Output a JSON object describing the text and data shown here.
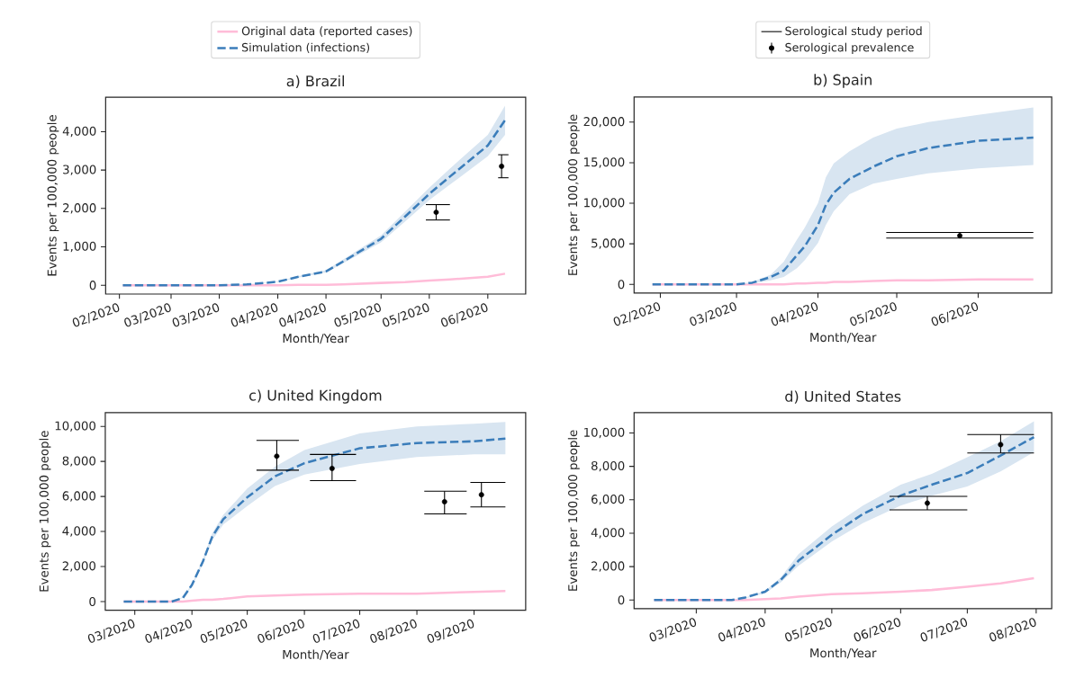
{
  "chart_data": [
    {
      "type": "line",
      "title": "a) Brazil",
      "xlabel": "Month/Year",
      "ylabel": "Events per 100,000 people",
      "legend": "top",
      "xlim": [
        "2020-02-11",
        "2020-06-12"
      ],
      "ylim": [
        -230,
        4900
      ],
      "xticks": [
        {
          "value": "2020-02-15",
          "label": "02/2020"
        },
        {
          "value": "2020-03-01",
          "label": "03/2020"
        },
        {
          "value": "2020-03-15",
          "label": "03/2020"
        },
        {
          "value": "2020-04-01",
          "label": "04/2020"
        },
        {
          "value": "2020-04-15",
          "label": "04/2020"
        },
        {
          "value": "2020-05-01",
          "label": "05/2020"
        },
        {
          "value": "2020-05-15",
          "label": "05/2020"
        },
        {
          "value": "2020-06-01",
          "label": "06/2020"
        }
      ],
      "yticks": [
        0,
        {
          "value": 1000,
          "label": "1,000"
        },
        {
          "value": 2000,
          "label": "2,000"
        },
        {
          "value": 3000,
          "label": "3,000"
        },
        {
          "value": 4000,
          "label": "4,000"
        }
      ],
      "series": [
        {
          "name": "Original data (reported cases)",
          "line_style": "solid",
          "color": "#ffbcd8",
          "x": [
            "2020-02-16",
            "2020-03-15",
            "2020-03-23",
            "2020-04-01",
            "2020-04-07",
            "2020-04-15",
            "2020-04-20",
            "2020-05-01",
            "2020-05-08",
            "2020-05-15",
            "2020-05-21",
            "2020-06-01",
            "2020-06-06"
          ],
          "values": [
            0,
            0,
            0,
            0,
            10,
            10,
            20,
            60,
            80,
            120,
            150,
            220,
            300
          ]
        },
        {
          "name": "Simulation (infections)",
          "line_style": "dashed",
          "color": "#3b7dba",
          "x": [
            "2020-02-16",
            "2020-03-15",
            "2020-03-23",
            "2020-04-01",
            "2020-04-07",
            "2020-04-15",
            "2020-04-20",
            "2020-05-01",
            "2020-05-08",
            "2020-05-15",
            "2020-05-21",
            "2020-06-01",
            "2020-06-06"
          ],
          "values": [
            0,
            0,
            20,
            90,
            220,
            360,
            620,
            1210,
            1790,
            2380,
            2830,
            3640,
            4300
          ],
          "lower": [
            0,
            0,
            15,
            80,
            200,
            330,
            570,
            1120,
            1660,
            2220,
            2620,
            3360,
            3920
          ],
          "upper": [
            0,
            0,
            25,
            100,
            240,
            390,
            670,
            1300,
            1920,
            2540,
            3040,
            3920,
            4680
          ]
        },
        {
          "line_style": "solid",
          "color": "#000000",
          "x": [
            "2020-05-14",
            "2020-05-21"
          ],
          "values": [
            1700,
            1700
          ]
        },
        {
          "line_style": "solid",
          "color": "#000000",
          "x": [
            "2020-05-14",
            "2020-05-21"
          ],
          "values": [
            2100,
            2100
          ]
        },
        {
          "line_style": "solid",
          "color": "#000000",
          "x": [
            "2020-06-04",
            "2020-06-07"
          ],
          "values": [
            2800,
            2800
          ]
        },
        {
          "line_style": "solid",
          "color": "#000000",
          "x": [
            "2020-06-04",
            "2020-06-07"
          ],
          "values": [
            3400,
            3400
          ]
        },
        {
          "type": "scatter",
          "marker": "circle",
          "color": "#000000",
          "x": [
            "2020-05-17",
            "2020-06-05"
          ],
          "values": [
            1900,
            3100
          ],
          "errors": [
            [
              1700,
              2100
            ],
            [
              2800,
              3400
            ]
          ]
        }
      ]
    },
    {
      "type": "line",
      "title": "b) Spain",
      "xlabel": "Month/Year",
      "ylabel": "Events per 100,000 people",
      "legend": "top",
      "xlim": [
        "2020-01-22",
        "2020-06-29"
      ],
      "ylim": [
        -1070,
        23100
      ],
      "xticks": [
        {
          "value": "2020-02-01",
          "label": "02/2020"
        },
        {
          "value": "2020-03-01",
          "label": "03/2020"
        },
        {
          "value": "2020-04-01",
          "label": "04/2020"
        },
        {
          "value": "2020-05-01",
          "label": "05/2020"
        },
        {
          "value": "2020-06-01",
          "label": "06/2020"
        }
      ],
      "yticks": [
        0,
        {
          "value": 5000,
          "label": "5,000"
        },
        {
          "value": 10000,
          "label": "10,000"
        },
        {
          "value": 15000,
          "label": "15,000"
        },
        {
          "value": 20000,
          "label": "20,000"
        }
      ],
      "series": [
        {
          "line_style": "solid",
          "color": "#ffbcd8",
          "x": [
            "2020-01-29",
            "2020-03-01",
            "2020-03-07",
            "2020-03-14",
            "2020-03-19",
            "2020-03-24",
            "2020-03-27",
            "2020-04-01",
            "2020-04-04",
            "2020-04-07",
            "2020-04-13",
            "2020-04-22",
            "2020-05-01",
            "2020-05-13",
            "2020-06-01",
            "2020-06-22"
          ],
          "values": [
            0,
            0,
            0,
            0,
            0,
            100,
            100,
            200,
            200,
            300,
            300,
            400,
            500,
            500,
            600,
            600
          ]
        },
        {
          "line_style": "dashed",
          "color": "#3b7dba",
          "x": [
            "2020-01-29",
            "2020-03-01",
            "2020-03-07",
            "2020-03-14",
            "2020-03-19",
            "2020-03-24",
            "2020-03-27",
            "2020-04-01",
            "2020-04-04",
            "2020-04-07",
            "2020-04-13",
            "2020-04-22",
            "2020-05-01",
            "2020-05-13",
            "2020-06-01",
            "2020-06-22"
          ],
          "values": [
            0,
            0,
            200,
            900,
            1700,
            3600,
            4700,
            7300,
            9800,
            11300,
            13000,
            14500,
            15800,
            16800,
            17700,
            18100
          ],
          "lower": [
            0,
            0,
            100,
            500,
            900,
            2000,
            3000,
            5100,
            7300,
            9000,
            11100,
            12400,
            13000,
            13700,
            14300,
            14700
          ],
          "upper": [
            0,
            0,
            300,
            1200,
            2800,
            5500,
            7000,
            10000,
            13200,
            14900,
            16400,
            18100,
            19200,
            20000,
            20900,
            21800
          ]
        },
        {
          "name": "Serological study period",
          "line_style": "solid",
          "color": "#000000",
          "x": [
            "2020-04-27",
            "2020-06-22"
          ],
          "values": [
            5700,
            5700
          ]
        },
        {
          "line_style": "solid",
          "color": "#000000",
          "x": [
            "2020-04-27",
            "2020-06-22"
          ],
          "values": [
            6400,
            6400
          ]
        },
        {
          "name": "Serological prevalence",
          "type": "scatter",
          "marker": "circle",
          "color": "#000000",
          "x": [
            "2020-05-25"
          ],
          "values": [
            6000
          ],
          "errors": [
            [
              5700,
              6400
            ]
          ]
        }
      ]
    },
    {
      "type": "line",
      "title": "c) United Kingdom",
      "xlabel": "Month/Year",
      "ylabel": "Events per 100,000 people",
      "xlim": [
        "2020-02-14",
        "2020-09-29"
      ],
      "ylim": [
        -490,
        10790
      ],
      "xticks": [
        {
          "value": "2020-03-01",
          "label": "03/2020"
        },
        {
          "value": "2020-04-01",
          "label": "04/2020"
        },
        {
          "value": "2020-05-01",
          "label": "05/2020"
        },
        {
          "value": "2020-06-01",
          "label": "06/2020"
        },
        {
          "value": "2020-07-01",
          "label": "07/2020"
        },
        {
          "value": "2020-08-01",
          "label": "08/2020"
        },
        {
          "value": "2020-09-01",
          "label": "09/2020"
        }
      ],
      "yticks": [
        0,
        {
          "value": 2000,
          "label": "2,000"
        },
        {
          "value": 4000,
          "label": "4,000"
        },
        {
          "value": 6000,
          "label": "6,000"
        },
        {
          "value": 8000,
          "label": "8,000"
        },
        {
          "value": 10000,
          "label": "10,000"
        }
      ],
      "series": [
        {
          "line_style": "solid",
          "color": "#ffbcd8",
          "x": [
            "2020-02-24",
            "2020-03-21",
            "2020-03-27",
            "2020-04-01",
            "2020-04-07",
            "2020-04-12",
            "2020-04-18",
            "2020-05-01",
            "2020-05-16",
            "2020-06-01",
            "2020-07-01",
            "2020-08-01",
            "2020-09-01",
            "2020-09-18"
          ],
          "values": [
            0,
            0,
            0,
            50,
            100,
            100,
            150,
            300,
            350,
            400,
            450,
            450,
            550,
            600
          ]
        },
        {
          "line_style": "dashed",
          "color": "#3b7dba",
          "x": [
            "2020-02-24",
            "2020-03-21",
            "2020-03-27",
            "2020-04-01",
            "2020-04-07",
            "2020-04-12",
            "2020-04-18",
            "2020-05-01",
            "2020-05-16",
            "2020-06-01",
            "2020-07-01",
            "2020-08-01",
            "2020-09-01",
            "2020-09-18"
          ],
          "values": [
            0,
            0,
            200,
            950,
            2300,
            3700,
            4700,
            5950,
            7150,
            7900,
            8750,
            9050,
            9150,
            9300
          ],
          "lower": [
            0,
            0,
            200,
            850,
            2150,
            3500,
            4400,
            5450,
            6600,
            7250,
            7850,
            8250,
            8400,
            8400
          ],
          "upper": [
            0,
            0,
            250,
            1000,
            2450,
            3900,
            4950,
            6450,
            7700,
            8650,
            9600,
            10000,
            10150,
            10250
          ]
        },
        {
          "line_style": "solid",
          "color": "#000000",
          "x": [
            "2020-05-06",
            "2020-05-29"
          ],
          "values": [
            7500,
            7500
          ]
        },
        {
          "line_style": "solid",
          "color": "#000000",
          "x": [
            "2020-05-06",
            "2020-05-29"
          ],
          "values": [
            9200,
            9200
          ]
        },
        {
          "line_style": "solid",
          "color": "#000000",
          "x": [
            "2020-06-04",
            "2020-06-29"
          ],
          "values": [
            6900,
            6900
          ]
        },
        {
          "line_style": "solid",
          "color": "#000000",
          "x": [
            "2020-06-04",
            "2020-06-29"
          ],
          "values": [
            8400,
            8400
          ]
        },
        {
          "line_style": "solid",
          "color": "#000000",
          "x": [
            "2020-08-05",
            "2020-08-28"
          ],
          "values": [
            5000,
            5000
          ]
        },
        {
          "line_style": "solid",
          "color": "#000000",
          "x": [
            "2020-08-05",
            "2020-08-28"
          ],
          "values": [
            6300,
            6300
          ]
        },
        {
          "line_style": "solid",
          "color": "#000000",
          "x": [
            "2020-08-30",
            "2020-09-18"
          ],
          "values": [
            5400,
            5400
          ]
        },
        {
          "line_style": "solid",
          "color": "#000000",
          "x": [
            "2020-08-30",
            "2020-09-18"
          ],
          "values": [
            6800,
            6800
          ]
        },
        {
          "type": "scatter",
          "marker": "circle",
          "color": "#000000",
          "x": [
            "2020-05-17",
            "2020-06-16",
            "2020-08-16",
            "2020-09-05"
          ],
          "values": [
            8300,
            7600,
            5700,
            6100
          ],
          "errors": [
            [
              7500,
              9200
            ],
            [
              6900,
              8400
            ],
            [
              5000,
              6300
            ],
            [
              5400,
              6800
            ]
          ]
        }
      ]
    },
    {
      "type": "line",
      "title": "d) United States",
      "xlabel": "Month/Year",
      "ylabel": "Events per 100,000 people",
      "xlim": [
        "2020-02-02",
        "2020-08-08"
      ],
      "ylim": [
        -520,
        11220
      ],
      "xticks": [
        {
          "value": "2020-03-01",
          "label": "03/2020"
        },
        {
          "value": "2020-04-01",
          "label": "04/2020"
        },
        {
          "value": "2020-05-01",
          "label": "05/2020"
        },
        {
          "value": "2020-06-01",
          "label": "06/2020"
        },
        {
          "value": "2020-07-01",
          "label": "07/2020"
        },
        {
          "value": "2020-08-01",
          "label": "08/2020"
        }
      ],
      "yticks": [
        0,
        {
          "value": 2000,
          "label": "2,000"
        },
        {
          "value": 4000,
          "label": "4,000"
        },
        {
          "value": 6000,
          "label": "6,000"
        },
        {
          "value": 8000,
          "label": "8,000"
        },
        {
          "value": 10000,
          "label": "10,000"
        }
      ],
      "series": [
        {
          "line_style": "solid",
          "color": "#ffbcd8",
          "x": [
            "2020-02-11",
            "2020-03-17",
            "2020-03-23",
            "2020-04-01",
            "2020-04-08",
            "2020-04-16",
            "2020-05-01",
            "2020-05-15",
            "2020-06-01",
            "2020-06-15",
            "2020-07-01",
            "2020-07-16",
            "2020-07-31"
          ],
          "values": [
            0,
            0,
            0,
            50,
            100,
            200,
            350,
            400,
            500,
            600,
            800,
            1000,
            1300
          ]
        },
        {
          "line_style": "dashed",
          "color": "#3b7dba",
          "x": [
            "2020-02-11",
            "2020-03-17",
            "2020-03-23",
            "2020-04-01",
            "2020-04-08",
            "2020-04-16",
            "2020-05-01",
            "2020-05-15",
            "2020-06-01",
            "2020-06-15",
            "2020-07-01",
            "2020-07-16",
            "2020-07-31"
          ],
          "values": [
            0,
            0,
            150,
            500,
            1200,
            2350,
            3900,
            5150,
            6250,
            6900,
            7600,
            8650,
            9750
          ],
          "lower": [
            0,
            0,
            100,
            400,
            1050,
            2050,
            3500,
            4600,
            5650,
            6250,
            6800,
            7700,
            8850
          ],
          "upper": [
            0,
            0,
            150,
            550,
            1350,
            2750,
            4400,
            5650,
            6900,
            7550,
            8550,
            9500,
            10700
          ]
        },
        {
          "line_style": "solid",
          "color": "#000000",
          "x": [
            "2020-05-27",
            "2020-07-01"
          ],
          "values": [
            5400,
            5400
          ]
        },
        {
          "line_style": "solid",
          "color": "#000000",
          "x": [
            "2020-05-27",
            "2020-07-01"
          ],
          "values": [
            6200,
            6200
          ]
        },
        {
          "line_style": "solid",
          "color": "#000000",
          "x": [
            "2020-07-01",
            "2020-07-31"
          ],
          "values": [
            8800,
            8800
          ]
        },
        {
          "line_style": "solid",
          "color": "#000000",
          "x": [
            "2020-07-01",
            "2020-07-31"
          ],
          "values": [
            9900,
            9900
          ]
        },
        {
          "type": "scatter",
          "marker": "circle",
          "color": "#000000",
          "x": [
            "2020-06-13",
            "2020-07-16"
          ],
          "values": [
            5800,
            9300
          ],
          "errors": [
            [
              5400,
              6200
            ],
            [
              8800,
              9900
            ]
          ]
        }
      ]
    }
  ]
}
